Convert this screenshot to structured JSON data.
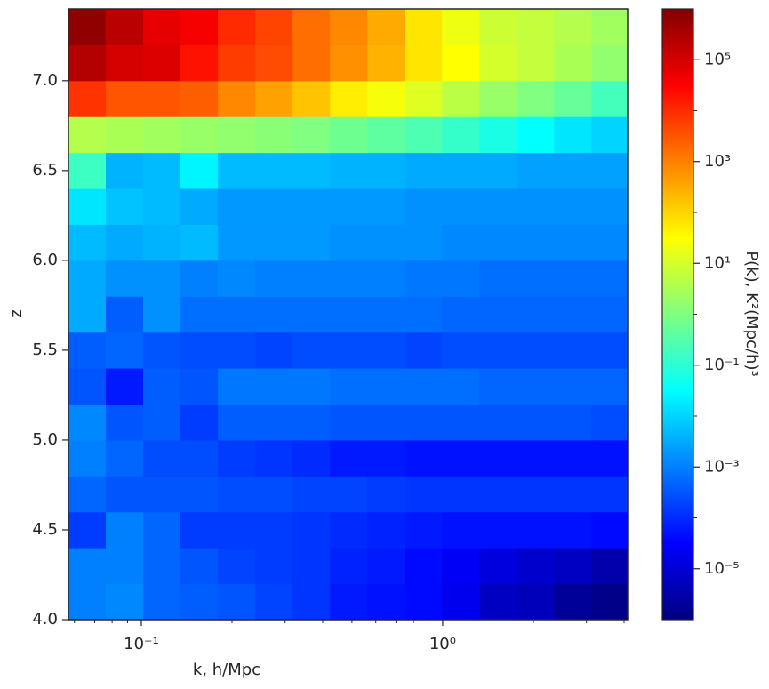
{
  "chart_data": {
    "type": "heatmap",
    "xlabel": "k, h/Mpc",
    "ylabel": "z",
    "colorbar_label": "P(k), K²(Mpc/h)³",
    "colormap": "jet",
    "xscale": "log",
    "colorbar_scale": "log",
    "x_edges": [
      0.0573,
      0.0762,
      0.1014,
      0.1349,
      0.1795,
      0.2388,
      0.3177,
      0.4227,
      0.5623,
      0.748,
      0.995,
      1.324,
      1.762,
      2.344,
      3.119,
      4.11
    ],
    "y_edges": [
      4.0,
      4.2,
      4.4,
      4.6,
      4.8,
      5.0,
      5.2,
      5.4,
      5.6,
      5.8,
      6.0,
      6.2,
      6.4,
      6.6,
      6.8,
      7.0,
      7.2,
      7.4
    ],
    "values": [
      [
        0.001,
        0.0013,
        0.0005,
        0.0004,
        0.00032,
        0.0002,
        0.00013,
        6.3e-05,
        5e-05,
        4e-05,
        2e-05,
        6.3e-06,
        5e-06,
        2e-06,
        1.3e-06
      ],
      [
        0.001,
        0.001,
        0.0005,
        0.00032,
        0.0002,
        0.00016,
        0.00013,
        7.9e-05,
        6.3e-05,
        4e-05,
        2.5e-05,
        1.3e-05,
        7.9e-06,
        6.3e-06,
        3.2e-06
      ],
      [
        0.00016,
        0.001,
        0.0005,
        0.00016,
        0.00016,
        0.00016,
        0.00013,
        0.0001,
        7.9e-05,
        6.3e-05,
        5e-05,
        5e-05,
        5e-05,
        5e-05,
        4e-05
      ],
      [
        0.0005,
        0.00032,
        0.00032,
        0.00032,
        0.00025,
        0.00025,
        0.0002,
        0.0002,
        0.00016,
        0.00013,
        0.00013,
        0.00013,
        0.00013,
        0.00013,
        0.00013
      ],
      [
        0.001,
        0.0005,
        0.00025,
        0.00025,
        0.00016,
        0.00013,
        0.0001,
        6.3e-05,
        6.3e-05,
        5e-05,
        5e-05,
        5e-05,
        5e-05,
        5e-05,
        5e-05
      ],
      [
        0.0013,
        0.00032,
        0.0004,
        0.00016,
        0.0004,
        0.0004,
        0.0004,
        0.00032,
        0.00032,
        0.00032,
        0.00032,
        0.00032,
        0.00032,
        0.00032,
        0.00025
      ],
      [
        0.00032,
        6.3e-05,
        0.0004,
        0.00032,
        0.00079,
        0.00079,
        0.00079,
        0.00063,
        0.00063,
        0.00063,
        0.00063,
        0.0005,
        0.0005,
        0.0005,
        0.0005
      ],
      [
        0.0004,
        0.0005,
        0.00032,
        0.00025,
        0.00025,
        0.0002,
        0.00025,
        0.00025,
        0.00025,
        0.0002,
        0.00025,
        0.00025,
        0.00025,
        0.00025,
        0.00025
      ],
      [
        0.0032,
        0.0004,
        0.0016,
        0.00063,
        0.00063,
        0.00063,
        0.00063,
        0.00063,
        0.00063,
        0.00063,
        0.0005,
        0.0005,
        0.0005,
        0.0005,
        0.0005
      ],
      [
        0.0032,
        0.0016,
        0.0016,
        0.001,
        0.0013,
        0.001,
        0.001,
        0.001,
        0.001,
        0.00079,
        0.00079,
        0.00063,
        0.00063,
        0.00063,
        0.00063
      ],
      [
        0.005,
        0.0032,
        0.004,
        0.005,
        0.002,
        0.002,
        0.002,
        0.0016,
        0.0016,
        0.0016,
        0.0013,
        0.0013,
        0.0013,
        0.0013,
        0.0013
      ],
      [
        0.016,
        0.0063,
        0.005,
        0.0032,
        0.002,
        0.002,
        0.002,
        0.002,
        0.002,
        0.0016,
        0.0016,
        0.0016,
        0.0016,
        0.0016,
        0.0016
      ],
      [
        0.16,
        0.004,
        0.005,
        0.025,
        0.005,
        0.005,
        0.005,
        0.004,
        0.004,
        0.0032,
        0.0032,
        0.0032,
        0.0025,
        0.0025,
        0.0025
      ],
      [
        4,
        3.2,
        2.5,
        2,
        1.6,
        1.3,
        1,
        0.63,
        0.4,
        0.25,
        0.13,
        0.063,
        0.032,
        0.016,
        0.01
      ],
      [
        7900,
        3200,
        3200,
        2500,
        790,
        400,
        160,
        50,
        25,
        13,
        5,
        2,
        1,
        0.5,
        0.2
      ],
      [
        250000,
        100000,
        79000,
        20000,
        6300,
        4000,
        1600,
        630,
        250,
        63,
        32,
        10,
        6.3,
        3.2,
        1.6
      ],
      [
        630000,
        200000,
        63000,
        40000,
        10000,
        5000,
        1600,
        790,
        320,
        63,
        20,
        7.9,
        6.3,
        4,
        2.5
      ]
    ],
    "xlim": [
      0.0573,
      4.11
    ],
    "xticks": [
      {
        "value": 0.1,
        "label": "10⁻¹"
      },
      {
        "value": 1,
        "label": "10⁰"
      }
    ],
    "xminorticks": [
      0.06,
      0.07,
      0.08,
      0.09,
      0.2,
      0.3,
      0.4,
      0.5,
      0.6,
      0.7,
      0.8,
      0.9,
      2,
      3,
      4
    ],
    "ylim": [
      4.0,
      7.4
    ],
    "yticks": [
      {
        "value": 4,
        "label": "4.0"
      },
      4.5,
      {
        "value": 5,
        "label": "5.0"
      },
      5.5,
      {
        "value": 6,
        "label": "6.0"
      },
      6.5,
      {
        "value": 7,
        "label": "7.0"
      }
    ],
    "clim": [
      1e-06,
      1000000.0
    ],
    "cticks": [
      {
        "value": 1e-05,
        "label": "10⁻⁵"
      },
      {
        "value": 0.001,
        "label": "10⁻³"
      },
      {
        "value": 0.1,
        "label": "10⁻¹"
      },
      {
        "value": 10,
        "label": "10¹"
      },
      {
        "value": 1000,
        "label": "10³"
      },
      {
        "value": 100000,
        "label": "10⁵"
      }
    ],
    "cminorticks": [
      0.0001,
      0.01,
      1,
      100,
      10000
    ]
  }
}
